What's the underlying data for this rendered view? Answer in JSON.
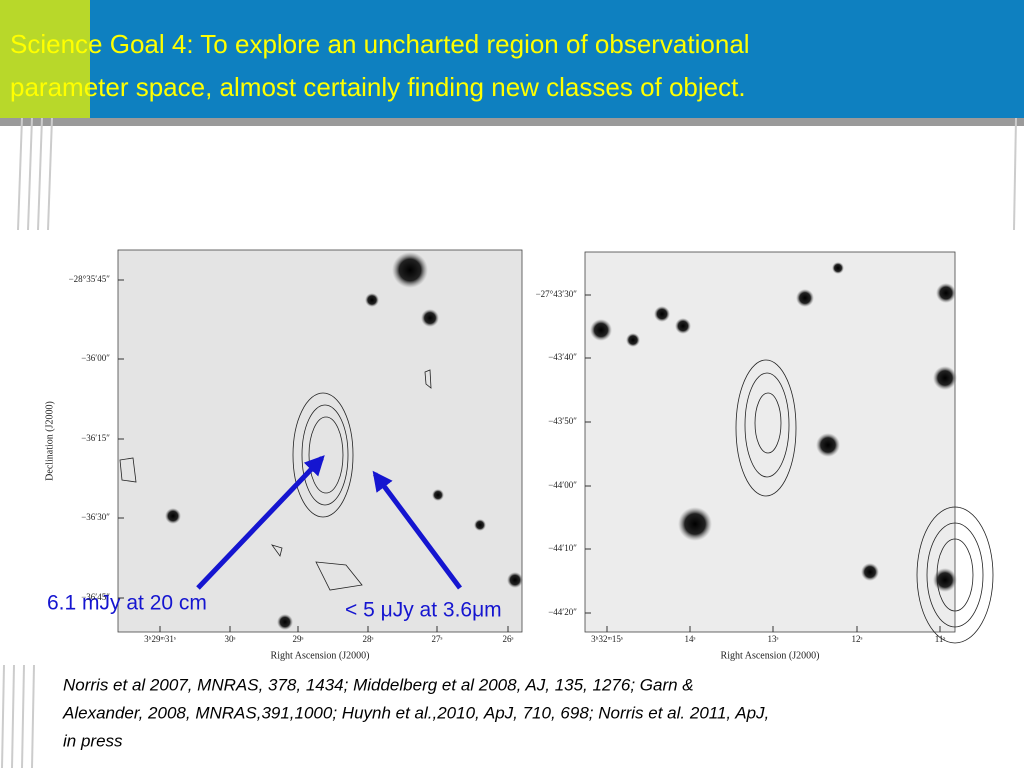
{
  "title": [
    "Science Goal 4: To explore an uncharted region of observational",
    "parameter space, almost certainly finding new classes of object."
  ],
  "panels": [
    {
      "y_label": "Declination (J2000)",
      "x_label": "Right Ascension (J2000)",
      "y_ticks": [
        "−28°35′45″",
        "−36′00″",
        "−36′15″",
        "−36′30″",
        "−36′45″"
      ],
      "x_ticks": [
        "3ʰ29ᵐ31ˢ",
        "30ˢ",
        "29ˢ",
        "28ˢ",
        "27ˢ",
        "26ˢ"
      ]
    },
    {
      "x_label": "Right Ascension (J2000)",
      "y_ticks": [
        "−27°43′30″",
        "−43′40″",
        "−43′50″",
        "−44′00″",
        "−44′10″",
        "−44′20″"
      ],
      "x_ticks": [
        "3ʰ32ᵐ15ˢ",
        "14ˢ",
        "13ˢ",
        "12ˢ",
        "11ˢ"
      ]
    }
  ],
  "annotations": [
    "6.1 mJy at 20 cm",
    "< 5 μJy at 3.6μm"
  ],
  "citation": [
    "Norris et al 2007, MNRAS, 378, 1434; Middelberg et al 2008, AJ, 135, 1276; Garn &",
    "Alexander, 2008, MNRAS,391,1000; Huynh et al.,2010, ApJ, 710, 698; Norris et al. 2011, ApJ,",
    "in press"
  ]
}
